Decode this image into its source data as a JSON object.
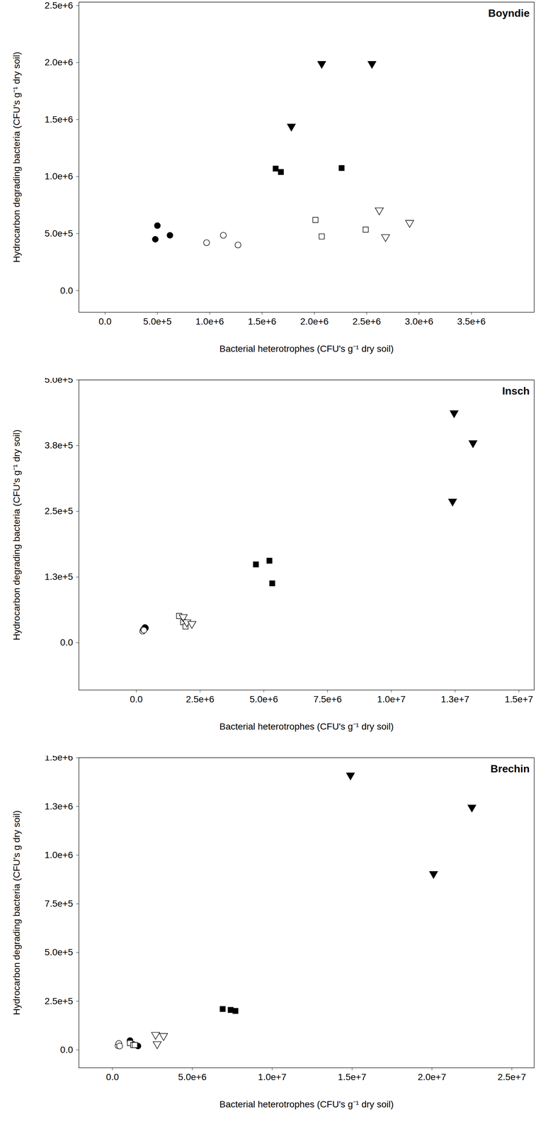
{
  "chart_data": [
    {
      "type": "scatter",
      "title": "Boyndie",
      "x_label": "Bacterial heterotrophes (CFU's g⁻¹ dry soil)",
      "y_label": "Hydrocarbon degrading bacteria (CFU's g⁻¹ dry soil)",
      "xlim": [
        -250000,
        4100000
      ],
      "ylim": [
        -190000,
        2530000
      ],
      "xticks": [
        {
          "value": 0,
          "label": "0.0"
        },
        {
          "value": 500000,
          "label": "5.0e+5"
        },
        {
          "value": 1000000,
          "label": "1.0e+6"
        },
        {
          "value": 1500000,
          "label": "1.5e+6"
        },
        {
          "value": 2000000,
          "label": "2.0e+6"
        },
        {
          "value": 2500000,
          "label": "2.5e+6"
        },
        {
          "value": 3000000,
          "label": "3.0e+6"
        },
        {
          "value": 3500000,
          "label": "3.5e+6"
        }
      ],
      "yticks": [
        {
          "value": 0,
          "label": "0.0"
        },
        {
          "value": 500000,
          "label": "5.0e+5"
        },
        {
          "value": 1000000,
          "label": "1.0e+6"
        },
        {
          "value": 1500000,
          "label": "1.5e+6"
        },
        {
          "value": 2000000,
          "label": "2.0e+6"
        },
        {
          "value": 2500000,
          "label": "2.5e+6"
        }
      ],
      "grid": false,
      "series": [
        {
          "marker": "circle",
          "color": "#000000",
          "x": [
            480000,
            500000,
            620000
          ],
          "values": [
            450000,
            570000,
            485000
          ]
        },
        {
          "marker": "circle-open",
          "color": "#000000",
          "x": [
            970000,
            1130000,
            1270000
          ],
          "values": [
            420000,
            485000,
            400000
          ]
        },
        {
          "marker": "square",
          "color": "#000000",
          "x": [
            1630000,
            1680000,
            2260000
          ],
          "values": [
            1070000,
            1040000,
            1075000
          ]
        },
        {
          "marker": "square-open",
          "color": "#000000",
          "x": [
            2010000,
            2070000,
            2490000
          ],
          "values": [
            620000,
            475000,
            535000
          ]
        },
        {
          "marker": "triangle-down",
          "color": "#000000",
          "x": [
            1780000,
            2070000,
            2550000
          ],
          "values": [
            1440000,
            1990000,
            1990000
          ]
        },
        {
          "marker": "triangle-down-open",
          "color": "#000000",
          "x": [
            2620000,
            2680000,
            2910000
          ],
          "values": [
            705000,
            470000,
            595000
          ]
        }
      ]
    },
    {
      "type": "scatter",
      "title": "Insch",
      "x_label": "Bacterial heterotrophes (CFU's g⁻¹ dry soil)",
      "y_label": "Hydrocarbon degrading bacteria (CFU's g⁻¹ dry soil)",
      "xlim": [
        -2250000,
        15600000
      ],
      "ylim": [
        -90000,
        500000
      ],
      "xticks": [
        {
          "value": 0,
          "label": "0.0"
        },
        {
          "value": 2500000,
          "label": "2.5e+6"
        },
        {
          "value": 5000000,
          "label": "5.0e+6"
        },
        {
          "value": 7500000,
          "label": "7.5e+6"
        },
        {
          "value": 10000000,
          "label": "1.0e+7"
        },
        {
          "value": 12500000,
          "label": "1.3e+7"
        },
        {
          "value": 15000000,
          "label": "1.5e+7"
        }
      ],
      "yticks": [
        {
          "value": 0,
          "label": "0.0"
        },
        {
          "value": 125000,
          "label": "1.3e+5"
        },
        {
          "value": 250000,
          "label": "2.5e+5"
        },
        {
          "value": 375000,
          "label": "3.8e+5"
        },
        {
          "value": 500000,
          "label": "5.0e+5"
        }
      ],
      "grid": false,
      "series": [
        {
          "marker": "circle",
          "color": "#000000",
          "x": [
            300000,
            340000,
            360000
          ],
          "values": [
            26000,
            29000,
            28000
          ]
        },
        {
          "marker": "circle-open",
          "color": "#000000",
          "x": [
            250000,
            280000,
            300000
          ],
          "values": [
            22000,
            25000,
            24000
          ]
        },
        {
          "marker": "square",
          "color": "#000000",
          "x": [
            4690000,
            5220000,
            5330000
          ],
          "values": [
            149000,
            156000,
            113000
          ]
        },
        {
          "marker": "square-open",
          "color": "#000000",
          "x": [
            1680000,
            1840000,
            1930000
          ],
          "values": [
            51000,
            39000,
            31000
          ]
        },
        {
          "marker": "triangle-down",
          "color": "#000000",
          "x": [
            12460000,
            13200000,
            12400000
          ],
          "values": [
            437000,
            380000,
            269000
          ]
        },
        {
          "marker": "triangle-down-open",
          "color": "#000000",
          "x": [
            1840000,
            1980000,
            2180000
          ],
          "values": [
            49000,
            39000,
            36000
          ]
        }
      ]
    },
    {
      "type": "scatter",
      "title": "Brechin",
      "x_label": "Bacterial heterotrophes (CFU's g⁻¹ dry soil)",
      "y_label": "Hydrocarbon degrading bacteria (CFU's g dry soil)",
      "xlim": [
        -2100000,
        26400000
      ],
      "ylim": [
        -92000,
        1500000
      ],
      "xticks": [
        {
          "value": 0,
          "label": "0.0"
        },
        {
          "value": 5000000,
          "label": "5.0e+6"
        },
        {
          "value": 10000000,
          "label": "1.0e+7"
        },
        {
          "value": 15000000,
          "label": "1.5e+7"
        },
        {
          "value": 20000000,
          "label": "2.0e+7"
        },
        {
          "value": 25000000,
          "label": "2.5e+7"
        }
      ],
      "yticks": [
        {
          "value": 0,
          "label": "0.0"
        },
        {
          "value": 250000,
          "label": "2.5e+5"
        },
        {
          "value": 500000,
          "label": "5.0e+5"
        },
        {
          "value": 750000,
          "label": "7.5e+5"
        },
        {
          "value": 1000000,
          "label": "1.0e+6"
        },
        {
          "value": 1250000,
          "label": "1.3e+6"
        },
        {
          "value": 1500000,
          "label": "1.5e+6"
        }
      ],
      "grid": false,
      "series": [
        {
          "marker": "circle",
          "color": "#000000",
          "x": [
            1100000,
            1300000,
            1600000
          ],
          "values": [
            48000,
            28000,
            20000
          ]
        },
        {
          "marker": "circle-open",
          "color": "#000000",
          "x": [
            350000,
            400000,
            450000
          ],
          "values": [
            22000,
            33000,
            20000
          ]
        },
        {
          "marker": "square",
          "color": "#000000",
          "x": [
            6900000,
            7400000,
            7700000
          ],
          "values": [
            210000,
            205000,
            200000
          ]
        },
        {
          "marker": "square-open",
          "color": "#000000",
          "x": [
            1100000,
            1300000,
            1400000
          ],
          "values": [
            35000,
            25000,
            25000
          ]
        },
        {
          "marker": "triangle-down",
          "color": "#000000",
          "x": [
            14900000,
            22500000,
            20100000
          ],
          "values": [
            1410000,
            1245000,
            904000
          ]
        },
        {
          "marker": "triangle-down-open",
          "color": "#000000",
          "x": [
            2700000,
            3200000,
            2800000
          ],
          "values": [
            78000,
            72000,
            30000
          ]
        }
      ]
    }
  ]
}
